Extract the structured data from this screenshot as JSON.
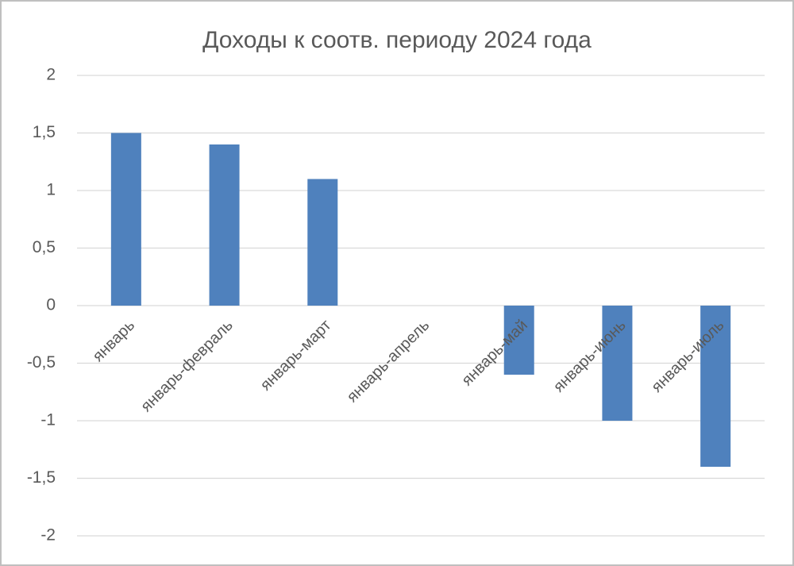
{
  "chart_data": {
    "type": "bar",
    "title": "Доходы к соотв. периоду 2024 года",
    "categories": [
      "январь",
      "январь-февраль",
      "январь-март",
      "январь-апрель",
      "январь-май",
      "январь-июнь",
      "январь-июль"
    ],
    "values": [
      1.5,
      1.4,
      1.1,
      0,
      -0.6,
      -1,
      -1.4
    ],
    "color": "#4f81bd",
    "ylim": [
      -2,
      2
    ],
    "yticks": [
      -2,
      {
        "value": -1.5,
        "label": "-1,5"
      },
      -1,
      {
        "value": -0.5,
        "label": "-0,5"
      },
      0,
      {
        "value": 0.5,
        "label": "0,5"
      },
      1,
      {
        "value": 1.5,
        "label": "1,5"
      },
      2
    ],
    "grid": true
  }
}
